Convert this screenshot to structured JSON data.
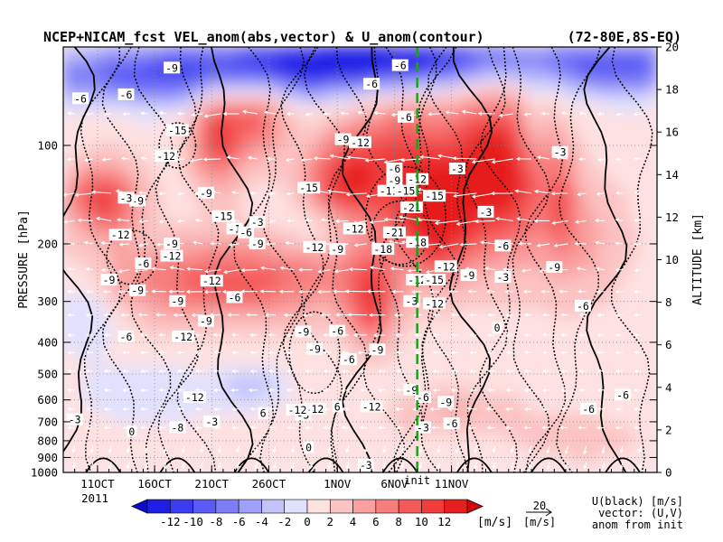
{
  "chart_data": {
    "type": "heatmap",
    "title": "NCEP+NICAM_fcst VEL_anom(abs,vector) & U_anom(contour)",
    "region": "(72-80E,8S-EQ)",
    "ylabel_left": "PRESSURE [hPa]",
    "ylabel_right": "ALTITUDE [km]",
    "x_ticks": [
      "11OCT",
      "16OCT",
      "21OCT",
      "26OCT",
      "1NOV",
      "6NOV",
      "11NOV"
    ],
    "x_year": "2011",
    "init_label": "init",
    "init_day": 38,
    "x_range": [
      7,
      59
    ],
    "pressure_ticks": [
      100,
      200,
      300,
      400,
      500,
      600,
      700,
      800,
      900,
      1000
    ],
    "pressure_range": [
      1000,
      50
    ],
    "altitude_ticks": [
      0,
      2,
      4,
      6,
      8,
      10,
      12,
      14,
      16,
      18,
      20
    ],
    "altitude_range": [
      0,
      20
    ],
    "colorbar": {
      "ticks": [
        -12,
        -10,
        -8,
        -6,
        -4,
        -2,
        0,
        2,
        4,
        6,
        8,
        10,
        12
      ],
      "unit": "[m/s]",
      "negative_colors": [
        "#1e1ee6",
        "#3c3cf0",
        "#5a5af5",
        "#7d7df8",
        "#a0a0fa",
        "#c3c3fc",
        "#e1e1fe"
      ],
      "positive_colors": [
        "#fee1e1",
        "#fcc3c3",
        "#faa0a0",
        "#f87d7d",
        "#f55a5a",
        "#f03c3c",
        "#e61e1e"
      ]
    },
    "vector_scale": {
      "value": "20",
      "unit": "[m/s]"
    },
    "legend_lines": [
      "U(black) [m/s]",
      "vector: (U,V)",
      "anom from init"
    ],
    "contour_labels": [
      {
        "day": 8.5,
        "p": 72,
        "v": "-6"
      },
      {
        "day": 12.5,
        "p": 70,
        "v": "-6"
      },
      {
        "day": 16.5,
        "p": 58,
        "v": "-9"
      },
      {
        "day": 17,
        "p": 90,
        "v": "-15"
      },
      {
        "day": 16,
        "p": 108,
        "v": "-12"
      },
      {
        "day": 19.5,
        "p": 140,
        "v": "-9"
      },
      {
        "day": 13.5,
        "p": 148,
        "v": "-9"
      },
      {
        "day": 12.5,
        "p": 145,
        "v": "-3"
      },
      {
        "day": 21,
        "p": 165,
        "v": "-15"
      },
      {
        "day": 24,
        "p": 172,
        "v": "-3"
      },
      {
        "day": 22,
        "p": 180,
        "v": "-1"
      },
      {
        "day": 23,
        "p": 185,
        "v": "-6"
      },
      {
        "day": 12,
        "p": 188,
        "v": "-12"
      },
      {
        "day": 16.5,
        "p": 200,
        "v": "-9"
      },
      {
        "day": 16.5,
        "p": 218,
        "v": "-12"
      },
      {
        "day": 14,
        "p": 230,
        "v": "-6"
      },
      {
        "day": 11,
        "p": 258,
        "v": "-9"
      },
      {
        "day": 13.5,
        "p": 278,
        "v": "-9"
      },
      {
        "day": 17,
        "p": 300,
        "v": "-9"
      },
      {
        "day": 20,
        "p": 260,
        "v": "-12"
      },
      {
        "day": 22,
        "p": 292,
        "v": "-6"
      },
      {
        "day": 24,
        "p": 200,
        "v": "-9"
      },
      {
        "day": 19.5,
        "p": 345,
        "v": "-9"
      },
      {
        "day": 17.5,
        "p": 385,
        "v": "-12"
      },
      {
        "day": 12.5,
        "p": 385,
        "v": "-6"
      },
      {
        "day": 28.5,
        "p": 135,
        "v": "-15"
      },
      {
        "day": 29,
        "p": 205,
        "v": "-12"
      },
      {
        "day": 31,
        "p": 208,
        "v": "-9"
      },
      {
        "day": 32.5,
        "p": 180,
        "v": "-12"
      },
      {
        "day": 31.5,
        "p": 96,
        "v": "-9"
      },
      {
        "day": 33,
        "p": 98,
        "v": "-12"
      },
      {
        "day": 34,
        "p": 65,
        "v": "-6"
      },
      {
        "day": 36.5,
        "p": 57,
        "v": "-6"
      },
      {
        "day": 37,
        "p": 82,
        "v": "-6"
      },
      {
        "day": 36,
        "p": 118,
        "v": "-6"
      },
      {
        "day": 36,
        "p": 128,
        "v": "-9"
      },
      {
        "day": 35.5,
        "p": 138,
        "v": "-11"
      },
      {
        "day": 37,
        "p": 138,
        "v": "-15"
      },
      {
        "day": 38,
        "p": 127,
        "v": "-12"
      },
      {
        "day": 37.5,
        "p": 155,
        "v": "-21"
      },
      {
        "day": 36,
        "p": 185,
        "v": "-21"
      },
      {
        "day": 38,
        "p": 198,
        "v": "-18"
      },
      {
        "day": 35,
        "p": 208,
        "v": "-18"
      },
      {
        "day": 38,
        "p": 258,
        "v": "-12"
      },
      {
        "day": 39.5,
        "p": 258,
        "v": "-15"
      },
      {
        "day": 40.5,
        "p": 235,
        "v": "-12"
      },
      {
        "day": 42.5,
        "p": 250,
        "v": "-9"
      },
      {
        "day": 41.5,
        "p": 118,
        "v": "-3"
      },
      {
        "day": 44,
        "p": 160,
        "v": "-3"
      },
      {
        "day": 45.5,
        "p": 203,
        "v": "-6"
      },
      {
        "day": 39.5,
        "p": 305,
        "v": "-12"
      },
      {
        "day": 37.5,
        "p": 300,
        "v": "-3"
      },
      {
        "day": 31,
        "p": 370,
        "v": "-6"
      },
      {
        "day": 29,
        "p": 420,
        "v": "-9"
      },
      {
        "day": 32,
        "p": 452,
        "v": "-6"
      },
      {
        "day": 34.5,
        "p": 422,
        "v": "-9"
      },
      {
        "day": 37.5,
        "p": 560,
        "v": "-9"
      },
      {
        "day": 38.5,
        "p": 590,
        "v": "-6"
      },
      {
        "day": 34,
        "p": 630,
        "v": "-12"
      },
      {
        "day": 31,
        "p": 630,
        "v": "6"
      },
      {
        "day": 28,
        "p": 668,
        "v": "-3"
      },
      {
        "day": 24.5,
        "p": 660,
        "v": "6"
      },
      {
        "day": 18.5,
        "p": 590,
        "v": "-12"
      },
      {
        "day": 20,
        "p": 700,
        "v": "-3"
      },
      {
        "day": 17,
        "p": 730,
        "v": "-8"
      },
      {
        "day": 13,
        "p": 750,
        "v": "0"
      },
      {
        "day": 8,
        "p": 690,
        "v": "-3"
      },
      {
        "day": 28.5,
        "p": 840,
        "v": "0"
      },
      {
        "day": 33.5,
        "p": 950,
        "v": "-3"
      },
      {
        "day": 38.5,
        "p": 730,
        "v": "-3"
      },
      {
        "day": 40.5,
        "p": 610,
        "v": "-9"
      },
      {
        "day": 41,
        "p": 710,
        "v": "-6"
      },
      {
        "day": 45.5,
        "p": 253,
        "v": "-3"
      },
      {
        "day": 45,
        "p": 362,
        "v": "0"
      },
      {
        "day": 50,
        "p": 236,
        "v": "-9"
      },
      {
        "day": 52.5,
        "p": 310,
        "v": "-6"
      },
      {
        "day": 53,
        "p": 640,
        "v": "-6"
      },
      {
        "day": 56,
        "p": 580,
        "v": "-6"
      },
      {
        "day": 50.5,
        "p": 105,
        "v": "-3"
      },
      {
        "day": 39.5,
        "p": 143,
        "v": "-15"
      },
      {
        "day": 28,
        "p": 372,
        "v": "-9"
      },
      {
        "day": 29,
        "p": 640,
        "v": "-12"
      },
      {
        "day": 27.5,
        "p": 645,
        "v": "-12"
      }
    ]
  }
}
